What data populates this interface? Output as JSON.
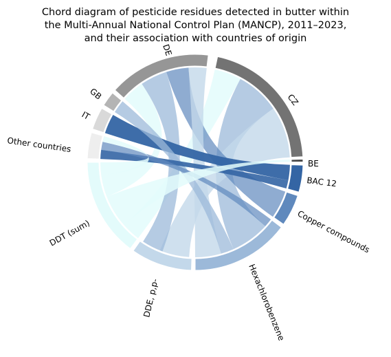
{
  "title": [
    "Chord diagram of pesticide residues detected in butter within",
    "the Multi-Annual National Control Plan (MANCP), 2011–2023,",
    "and their association with countries of origin"
  ],
  "countries": [
    {
      "key": "cz",
      "label": "CZ",
      "color": "#737373"
    },
    {
      "key": "be",
      "label": "BE",
      "color": "#4d4d4d"
    },
    {
      "key": "de",
      "label": "DE",
      "color": "#969696"
    },
    {
      "key": "gb",
      "label": "GB",
      "color": "#b4b4b4"
    },
    {
      "key": "it",
      "label": "IT",
      "color": "#d9d9d9"
    },
    {
      "key": "other",
      "label": "Other countries",
      "color": "#eeeeee"
    }
  ],
  "pesticides": [
    {
      "key": "bac",
      "label": "BAC 12",
      "color": "#3465a4"
    },
    {
      "key": "copper",
      "label": "Copper compounds",
      "color": "#5f89bd"
    },
    {
      "key": "hcb",
      "label": "Hexachlorobenzene",
      "color": "#9cb9d9"
    },
    {
      "key": "dde",
      "label": "DDE, p,p-",
      "color": "#c3d8ea"
    },
    {
      "key": "ddt",
      "label": "DDT (sum)",
      "color": "#e3fbfb"
    }
  ]
}
